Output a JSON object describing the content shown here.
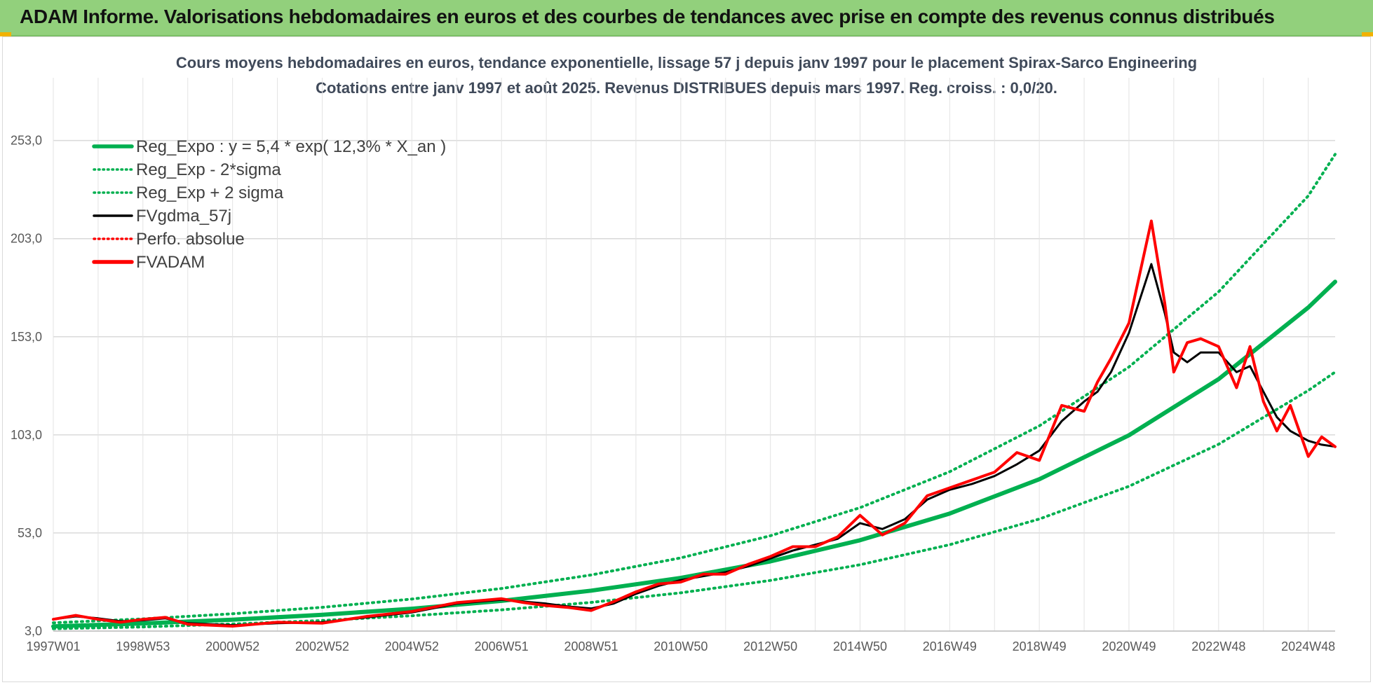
{
  "header": {
    "title": "ADAM Informe. Valorisations hebdomadaires en euros et des courbes de tendances avec prise en compte des revenus connus distribués"
  },
  "colors": {
    "header_bg": "#92d07c",
    "trend": "#00b050",
    "smooth": "#000000",
    "price": "#ff0000"
  },
  "chart_data": {
    "type": "line",
    "title_line1": "Cours moyens hebdomadaires en euros, tendance exponentielle, lissage 57 j depuis janv 1997 pour le placement Spirax-Sarco Engineering",
    "title_line2": "Cotations entre janv 1997 et août 2025.  Revenus DISTRIBUES depuis mars 1997. Reg. croiss. : 0,0/20.",
    "xlabel": "",
    "ylabel": "",
    "x_range": [
      1997.0,
      2025.6
    ],
    "ylim": [
      3.0,
      285.0
    ],
    "y_ticks": [
      "3,0",
      "53,0",
      "103,0",
      "153,0",
      "203,0",
      "253,0"
    ],
    "y_tick_values": [
      3,
      53,
      103,
      153,
      203,
      253
    ],
    "x_ticks": [
      "1997W01",
      "1998W53",
      "2000W52",
      "2002W52",
      "2004W52",
      "2006W51",
      "2008W51",
      "2010W50",
      "2012W50",
      "2014W50",
      "2016W49",
      "2018W49",
      "2020W49",
      "2022W48",
      "2024W48"
    ],
    "x_tick_values": [
      1997.0,
      1999.0,
      2001.0,
      2003.0,
      2005.0,
      2007.0,
      2009.0,
      2011.0,
      2013.0,
      2015.0,
      2017.0,
      2019.0,
      2021.0,
      2023.0,
      2025.0
    ],
    "grid": true,
    "legend_position": "top-left",
    "legend": [
      {
        "label": "Reg_Expo : y = 5,4 * exp( 12,3% *  X_an )",
        "color": "#00b050",
        "style": "solid-thick"
      },
      {
        "label": "Reg_Exp - 2*sigma",
        "color": "#00b050",
        "style": "dotted"
      },
      {
        "label": "Reg_Exp + 2 sigma",
        "color": "#00b050",
        "style": "dotted"
      },
      {
        "label": "FVgdma_57j",
        "color": "#000000",
        "style": "solid"
      },
      {
        "label": "Perfo. absolue",
        "color": "#ff0000",
        "style": "dotted"
      },
      {
        "label": "FVADAM",
        "color": "#ff0000",
        "style": "solid-thick"
      }
    ],
    "series": [
      {
        "name": "Reg_Expo : y = 5,4 * exp( 12,3% *  X_an )",
        "x": [
          1997,
          1999,
          2001,
          2003,
          2005,
          2007,
          2009,
          2011,
          2013,
          2015,
          2017,
          2019,
          2021,
          2023,
          2025,
          2025.6
        ],
        "y": [
          5.4,
          6.9,
          8.8,
          11.3,
          14.4,
          18.4,
          23.6,
          30.1,
          38.5,
          49.3,
          62.9,
          80.4,
          102.8,
          131.4,
          167.9,
          181.0
        ]
      },
      {
        "name": "Reg_Exp - 2*sigma",
        "x": [
          1997,
          1999,
          2001,
          2003,
          2005,
          2007,
          2009,
          2011,
          2013,
          2015,
          2017,
          2019,
          2021,
          2023,
          2025,
          2025.6
        ],
        "y": [
          4.2,
          5.1,
          6.6,
          8.4,
          10.8,
          13.8,
          17.6,
          22.5,
          28.8,
          36.8,
          47.0,
          60.1,
          76.8,
          98.2,
          125.6,
          135.0
        ]
      },
      {
        "name": "Reg_Exp + 2 sigma",
        "x": [
          1997,
          1999,
          2001,
          2003,
          2005,
          2007,
          2009,
          2011,
          2013,
          2015,
          2017,
          2019,
          2021,
          2023,
          2025,
          2025.6
        ],
        "y": [
          7.2,
          9.2,
          11.8,
          15.1,
          19.3,
          24.7,
          31.6,
          40.3,
          51.6,
          65.9,
          84.2,
          107.6,
          137.6,
          175.9,
          224.8,
          246.0
        ]
      },
      {
        "name": "FVgdma_57j",
        "x": [
          1997,
          1997.5,
          1998,
          1998.5,
          1999,
          1999.5,
          2000,
          2000.5,
          2001,
          2002,
          2003,
          2004,
          2005,
          2006,
          2006.5,
          2007,
          2007.5,
          2008,
          2008.5,
          2009,
          2009.5,
          2010,
          2010.5,
          2011,
          2011.5,
          2012,
          2012.5,
          2013,
          2013.5,
          2014,
          2014.5,
          2015,
          2015.5,
          2016,
          2016.5,
          2017,
          2017.5,
          2018,
          2018.5,
          2019,
          2019.5,
          2020,
          2020.3,
          2020.6,
          2021,
          2021.5,
          2021.8,
          2022,
          2022.3,
          2022.6,
          2023,
          2023.4,
          2023.7,
          2024,
          2024.3,
          2024.6,
          2025,
          2025.3,
          2025.6
        ],
        "y": [
          9.0,
          10.5,
          9.5,
          8.0,
          8.5,
          9.5,
          7.0,
          6.5,
          6.0,
          7.0,
          7.5,
          10.0,
          12.5,
          17.0,
          18.0,
          19.0,
          18.0,
          17.0,
          15.5,
          14.5,
          17.0,
          22.0,
          26.0,
          29.0,
          31.0,
          33.0,
          36.0,
          40.0,
          44.0,
          47.0,
          50.0,
          58.0,
          55.0,
          60.0,
          70.0,
          75.0,
          78.0,
          82.0,
          88.0,
          95.0,
          110.0,
          120.0,
          125.0,
          135.0,
          155.0,
          190.0,
          165.0,
          145.0,
          140.0,
          145.0,
          145.0,
          135.0,
          138.0,
          125.0,
          112.0,
          105.0,
          100.0,
          98.0,
          97.0
        ]
      },
      {
        "name": "FVADAM",
        "x": [
          1997,
          1997.5,
          1998,
          1998.5,
          1999,
          1999.5,
          2000,
          2000.5,
          2001,
          2002,
          2003,
          2004,
          2005,
          2006,
          2006.5,
          2007,
          2007.5,
          2008,
          2008.5,
          2009,
          2009.5,
          2010,
          2010.5,
          2011,
          2011.5,
          2012,
          2012.5,
          2013,
          2013.5,
          2014,
          2014.5,
          2015,
          2015.5,
          2016,
          2016.5,
          2017,
          2017.5,
          2018,
          2018.5,
          2019,
          2019.5,
          2020,
          2020.3,
          2020.6,
          2021,
          2021.5,
          2021.8,
          2022,
          2022.3,
          2022.6,
          2023,
          2023.4,
          2023.7,
          2024,
          2024.3,
          2024.6,
          2025,
          2025.3,
          2025.6
        ],
        "y": [
          9.0,
          11.0,
          9.0,
          7.5,
          9.0,
          10.0,
          6.5,
          6.0,
          5.5,
          7.5,
          7.0,
          10.5,
          13.0,
          17.5,
          18.5,
          19.5,
          17.5,
          16.0,
          15.0,
          13.5,
          18.0,
          23.0,
          27.0,
          28.0,
          32.0,
          32.0,
          37.0,
          41.0,
          46.0,
          46.0,
          51.0,
          62.0,
          52.0,
          58.0,
          72.0,
          76.0,
          80.0,
          84.0,
          94.0,
          90.0,
          118.0,
          115.0,
          130.0,
          142.0,
          160.0,
          212.0,
          170.0,
          135.0,
          150.0,
          152.0,
          148.0,
          127.0,
          148.0,
          120.0,
          105.0,
          118.0,
          92.0,
          102.0,
          97.0
        ]
      }
    ]
  }
}
